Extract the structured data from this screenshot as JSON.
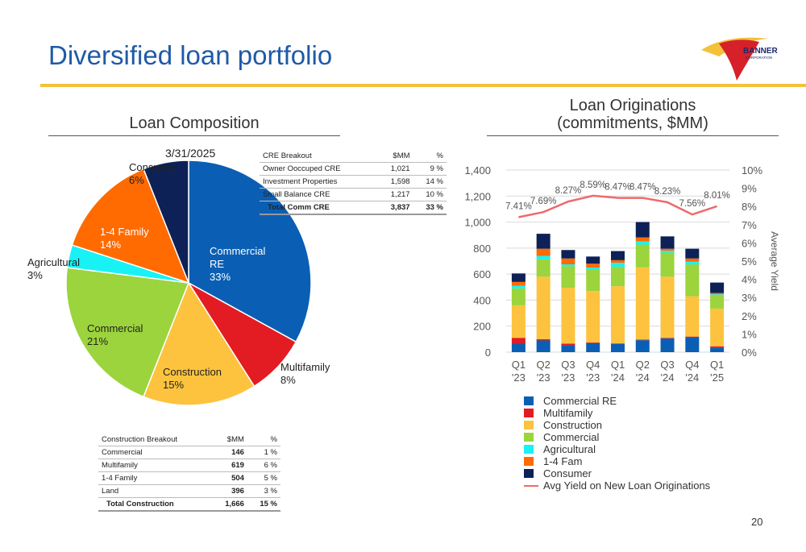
{
  "page": {
    "title": "Diversified loan portfolio",
    "page_number": "20"
  },
  "logo": {
    "text_main": "BANNER",
    "text_sub": "CORPORATION",
    "colors": {
      "red": "#d6202a",
      "gold": "#f3c23a",
      "navy": "#1b2a6b"
    }
  },
  "composition": {
    "heading": "Loan Composition",
    "date": "3/31/2025"
  },
  "originations": {
    "heading_line1": "Loan Originations",
    "heading_line2": "(commitments, $MM)"
  },
  "cre_table": {
    "headers": [
      "CRE Breakout",
      "$MM",
      "%"
    ],
    "rows": [
      {
        "label": "Owner Ooccuped  CRE",
        "mm": "1,021",
        "pct": "9  %"
      },
      {
        "label": "Investment Properties",
        "mm": "1,598",
        "pct": "14  %"
      },
      {
        "label": "Small Balance CRE",
        "mm": "1,217",
        "pct": "10  %"
      }
    ],
    "total": {
      "label": "Total Comm CRE",
      "mm": "3,837",
      "pct": "33  %"
    }
  },
  "construction_table": {
    "headers": [
      "Construction Breakout",
      "$MM",
      "%"
    ],
    "rows": [
      {
        "label": "Commercial",
        "mm": "146",
        "pct": "1  %"
      },
      {
        "label": "Multifamily",
        "mm": "619",
        "pct": "6  %"
      },
      {
        "label": "1-4 Family",
        "mm": "504",
        "pct": "5  %"
      },
      {
        "label": "Land",
        "mm": "396",
        "pct": "3  %"
      }
    ],
    "total": {
      "label": "Total Construction",
      "mm": "1,666",
      "pct": "15  %"
    }
  },
  "chart_data": [
    {
      "type": "pie",
      "slices": [
        {
          "lines": [
            "Commercial",
            "RE",
            "33%"
          ],
          "value": 33,
          "color": "#0a5fb4"
        },
        {
          "lines": [
            "Multifamily",
            "8%"
          ],
          "value": 8,
          "color": "#e31b23"
        },
        {
          "lines": [
            "Construction",
            "15%"
          ],
          "value": 15,
          "color": "#fdc33f"
        },
        {
          "lines": [
            "Commercial",
            "21%"
          ],
          "value": 21,
          "color": "#9bd43c"
        },
        {
          "lines": [
            "Agricultural",
            "3%"
          ],
          "value": 3,
          "color": "#19f2f5"
        },
        {
          "lines": [
            "1-4 Family",
            "14%"
          ],
          "value": 14,
          "color": "#ff6b00"
        },
        {
          "lines": [
            "Consumer",
            "6%"
          ],
          "value": 6,
          "color": "#0d2157"
        }
      ]
    },
    {
      "type": "bar",
      "stacked": true,
      "categories": [
        [
          "Q1",
          "'23"
        ],
        [
          "Q2",
          "'23"
        ],
        [
          "Q3",
          "'23"
        ],
        [
          "Q4",
          "'23"
        ],
        [
          "Q1",
          "'24"
        ],
        [
          "Q2",
          "'24"
        ],
        [
          "Q3",
          "'24"
        ],
        [
          "Q4",
          "'24"
        ],
        [
          "Q1",
          "'25"
        ]
      ],
      "series": [
        {
          "name": "Commercial RE",
          "color": "#0a5fb4",
          "values": [
            65,
            90,
            55,
            70,
            62,
            92,
            105,
            115,
            35
          ]
        },
        {
          "name": "Multifamily",
          "color": "#e31b23",
          "values": [
            45,
            10,
            10,
            5,
            5,
            5,
            5,
            5,
            10
          ]
        },
        {
          "name": "Construction",
          "color": "#fdc33f",
          "values": [
            250,
            480,
            430,
            395,
            440,
            555,
            470,
            310,
            290
          ]
        },
        {
          "name": "Commercial",
          "color": "#9bd43c",
          "values": [
            130,
            135,
            165,
            165,
            150,
            175,
            185,
            245,
            105
          ]
        },
        {
          "name": "Agricultural",
          "color": "#19f2f5",
          "values": [
            20,
            25,
            15,
            15,
            30,
            25,
            15,
            20,
            5
          ]
        },
        {
          "name": "1-4 Fam",
          "color": "#ff6b00",
          "values": [
            30,
            55,
            45,
            30,
            20,
            30,
            15,
            25,
            10
          ]
        },
        {
          "name": "Consumer",
          "color": "#0d2157",
          "values": [
            65,
            115,
            65,
            55,
            70,
            118,
            95,
            75,
            80
          ]
        }
      ],
      "line_series": {
        "name": "Avg Yield on New Loan Originations",
        "color": "#ef6a6a",
        "values": [
          7.41,
          7.69,
          8.27,
          8.59,
          8.47,
          8.47,
          8.23,
          7.56,
          8.01
        ],
        "labels": [
          "7.41%",
          "7.69%",
          "8.27%",
          "8.59%",
          "8.47%",
          "8.47%",
          "8.23%",
          "7.56%",
          "8.01%"
        ]
      },
      "y_left": {
        "ticks": [
          0,
          200,
          400,
          600,
          800,
          1000,
          1200,
          1400
        ],
        "tick_labels": [
          "0",
          "200",
          "400",
          "600",
          "800",
          "1,000",
          "1,200",
          "1,400"
        ],
        "range": [
          0,
          1400
        ]
      },
      "y_right": {
        "label": "Average Yield",
        "ticks": [
          0,
          1,
          2,
          3,
          4,
          5,
          6,
          7,
          8,
          9,
          10
        ],
        "tick_labels": [
          "0%",
          "1%",
          "2%",
          "3%",
          "4%",
          "5%",
          "6%",
          "7%",
          "8%",
          "9%",
          "10%"
        ],
        "range": [
          0,
          10
        ]
      },
      "grid": true,
      "legend_position": "bottom"
    }
  ]
}
